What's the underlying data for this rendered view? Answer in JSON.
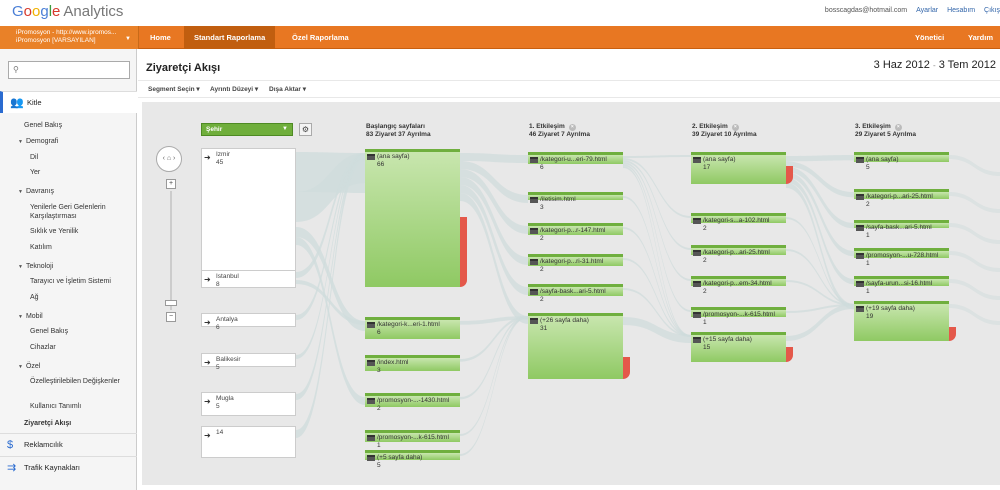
{
  "brand": {
    "logo_letters": [
      "G",
      "o",
      "o",
      "g",
      "l",
      "e"
    ],
    "product": "Analytics"
  },
  "top_links": {
    "email": "bosscagdas@hotmail.com",
    "settings": "Ayarlar",
    "account": "Hesabım",
    "signout": "Çıkış"
  },
  "nav": {
    "account_line1": "iPromosyon - http://www.ipromos...",
    "account_line2": "iPromosyon [VARSAYILAN]",
    "tabs": [
      "Home",
      "Standart Raporlama",
      "Özel Raporlama"
    ],
    "active_tab": "Standart Raporlama",
    "admin": "Yönetici",
    "help": "Yardım"
  },
  "sidebar": {
    "search_placeholder": "",
    "sections": [
      {
        "label": "Kitle",
        "icon": "people-icon"
      },
      {
        "label": "Reklamcılık",
        "icon": "dollar-icon"
      },
      {
        "label": "Trafik Kaynakları",
        "icon": "arrows-icon"
      }
    ],
    "items": [
      "Genel Bakış",
      "Demografi",
      "Dil",
      "Yer",
      "Davranış",
      "Yenilerle Geri Gelenlerin Karşılaştırması",
      "Sıklık ve Yenilik",
      "Katılım",
      "Teknoloji",
      "Tarayıcı ve İşletim Sistemi",
      "Ağ",
      "Mobil",
      "Genel Bakış",
      "Cihazlar",
      "Özel",
      "Özelleştirilebilen Değişkenler",
      "Kullanıcı Tanımlı",
      "Ziyaretçi Akışı"
    ]
  },
  "page": {
    "title": "Ziyaretçi Akışı",
    "date_start": "3 Haz 2012",
    "date_sep": "-",
    "date_end": "3 Tem 2012",
    "toolbar": [
      "Segment Seçin",
      "Ayrıntı Düzeyi",
      "Dışa Aktar"
    ]
  },
  "flow": {
    "dimension": "Şehir",
    "columns": [
      {
        "title": "Başlangıç sayfaları",
        "sub": "83 Ziyaret 37 Ayrılma"
      },
      {
        "title": "1. Etkileşim",
        "sub": "46 Ziyaret 7 Ayrılma"
      },
      {
        "title": "2. Etkileşim",
        "sub": "39 Ziyaret 10 Ayrılma"
      },
      {
        "title": "3. Etkileşim",
        "sub": "29 Ziyaret 5 Ayrılma"
      }
    ],
    "dimension_nodes": [
      {
        "name": "Izmir",
        "count": "45"
      },
      {
        "name": "Istanbul",
        "count": "8"
      },
      {
        "name": "Antalya",
        "count": "6"
      },
      {
        "name": "Balikesir",
        "count": "5"
      },
      {
        "name": "Mugla",
        "count": "5"
      },
      {
        "name": "",
        "count": "14"
      }
    ],
    "col0": [
      {
        "name": "(ana sayfa)",
        "count": "66"
      },
      {
        "name": "/kategori-k...eri-1.html",
        "count": "6"
      },
      {
        "name": "/index.html",
        "count": "3"
      },
      {
        "name": "/promosyon-...-1430.html",
        "count": "2"
      },
      {
        "name": "/promosyon-...k-615.html",
        "count": "1"
      },
      {
        "name": "(+5 sayfa daha)",
        "count": "5"
      }
    ],
    "col1": [
      {
        "name": "/kategori-u...eri-79.html",
        "count": "6"
      },
      {
        "name": "/iletisim.html",
        "count": "3"
      },
      {
        "name": "/kategori-p...r-147.html",
        "count": "2"
      },
      {
        "name": "/kategori-p...ri-31.html",
        "count": "2"
      },
      {
        "name": "/sayfa-bask...ari-5.html",
        "count": "2"
      },
      {
        "name": "(+26 sayfa daha)",
        "count": "31"
      }
    ],
    "col2": [
      {
        "name": "(ana sayfa)",
        "count": "17"
      },
      {
        "name": "/kategori-s...a-102.html",
        "count": "2"
      },
      {
        "name": "/kategori-p...ari-25.html",
        "count": "2"
      },
      {
        "name": "/kategori-p...em-34.html",
        "count": "2"
      },
      {
        "name": "/promosyon-...k-615.html",
        "count": "1"
      },
      {
        "name": "(+15 sayfa daha)",
        "count": "15"
      }
    ],
    "col3": [
      {
        "name": "(ana sayfa)",
        "count": "5"
      },
      {
        "name": "/kategori-p...ari-25.html",
        "count": "2"
      },
      {
        "name": "/sayfa-bask...ari-5.html",
        "count": "1"
      },
      {
        "name": "/promosyon-...u-728.html",
        "count": "1"
      },
      {
        "name": "/sayfa-urun...si-16.html",
        "count": "1"
      },
      {
        "name": "(+19 sayfa daha)",
        "count": "19"
      }
    ]
  },
  "colors": {
    "orange": "#e87722",
    "green": "#8fc963",
    "drop": "#e4584a",
    "link_blue": "#3366aa"
  }
}
